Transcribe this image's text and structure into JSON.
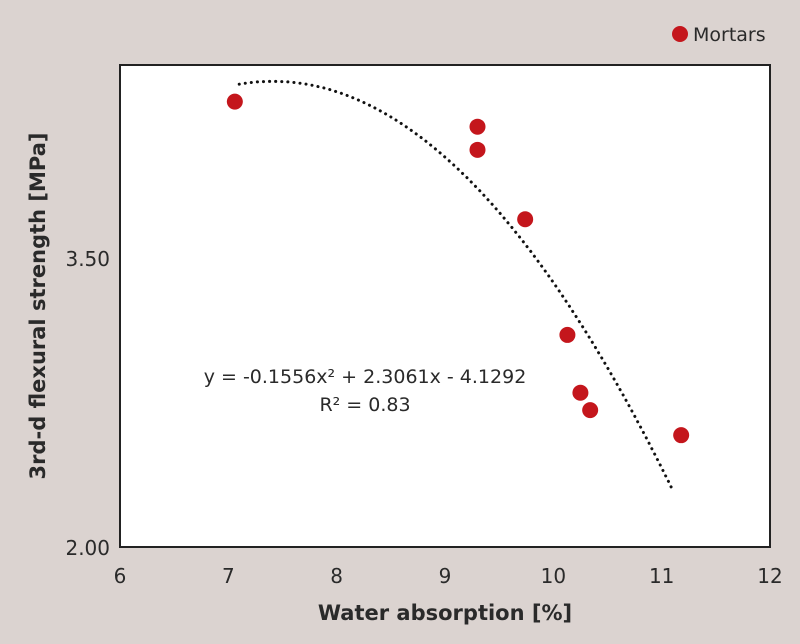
{
  "chart_data": {
    "type": "scatter",
    "xlabel": "Water absorption [%]",
    "ylabel": "3rd-d flexural strength [MPa]",
    "xlim": [
      6,
      12
    ],
    "ylim": [
      2.0,
      4.5
    ],
    "x_ticks": [
      "6",
      "7",
      "8",
      "9",
      "10",
      "11",
      "12"
    ],
    "y_ticks": [
      {
        "v": 2.0,
        "label": "2.00"
      },
      {
        "v": 3.5,
        "label": "3.50"
      }
    ],
    "legend": {
      "label": "Mortars",
      "position": "top-right"
    },
    "series": [
      {
        "name": "Mortars",
        "color": "#c4161c",
        "points": [
          [
            7.06,
            4.31
          ],
          [
            9.3,
            4.18
          ],
          [
            9.3,
            4.06
          ],
          [
            9.74,
            3.7
          ],
          [
            10.13,
            3.1
          ],
          [
            10.25,
            2.8
          ],
          [
            10.34,
            2.71
          ],
          [
            11.18,
            2.58
          ]
        ]
      }
    ],
    "trendline": {
      "type": "polynomial",
      "coefficients": [
        -0.1556,
        2.3061,
        -4.1292
      ],
      "x_range": [
        7.1,
        11.1
      ],
      "equation": "y = -0.1556x² + 2.3061x - 4.1292",
      "r2": "R² = 0.83"
    }
  }
}
